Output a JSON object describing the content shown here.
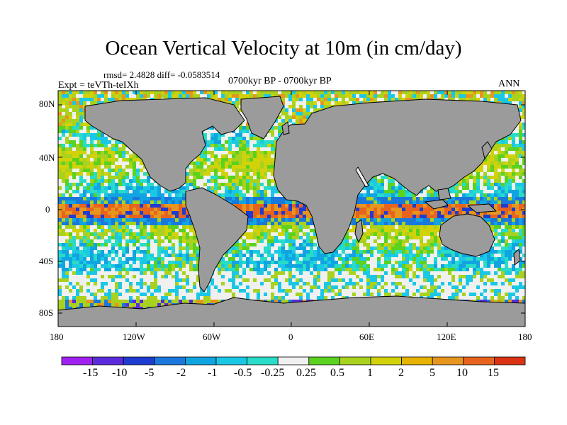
{
  "title": "Ocean Vertical Velocity at 10m (in cm/day)",
  "stats_text": "rmsd= 2.4828 diff= -0.0583514",
  "experiment_text": "Expt = teVTh-teIXh",
  "period_text": "0700kyr BP - 0700kyr BP",
  "season_text": "ANN",
  "lat_labels": [
    "80N",
    "40N",
    "0",
    "40S",
    "80S"
  ],
  "lon_labels": [
    "180",
    "120W",
    "60W",
    "0",
    "60E",
    "120E",
    "180"
  ],
  "colorbar": {
    "labels": [
      "-15",
      "-10",
      "-5",
      "-2",
      "-1",
      "-0.5",
      "-0.25",
      "0.25",
      "0.5",
      "1",
      "2",
      "5",
      "10",
      "15"
    ],
    "colors": [
      "#a020f0",
      "#5a2bdc",
      "#1e3cd2",
      "#1a78dc",
      "#10a4e0",
      "#1ac8e6",
      "#28dcc8",
      "#f0f0f0",
      "#5ad21e",
      "#a8d21e",
      "#d2d20a",
      "#e6b400",
      "#e6961e",
      "#e6641e",
      "#dc3214"
    ]
  },
  "colors": {
    "land": "#9b9b9b",
    "ocean_background": "#f0f0f0",
    "coastline": "#000000"
  }
}
